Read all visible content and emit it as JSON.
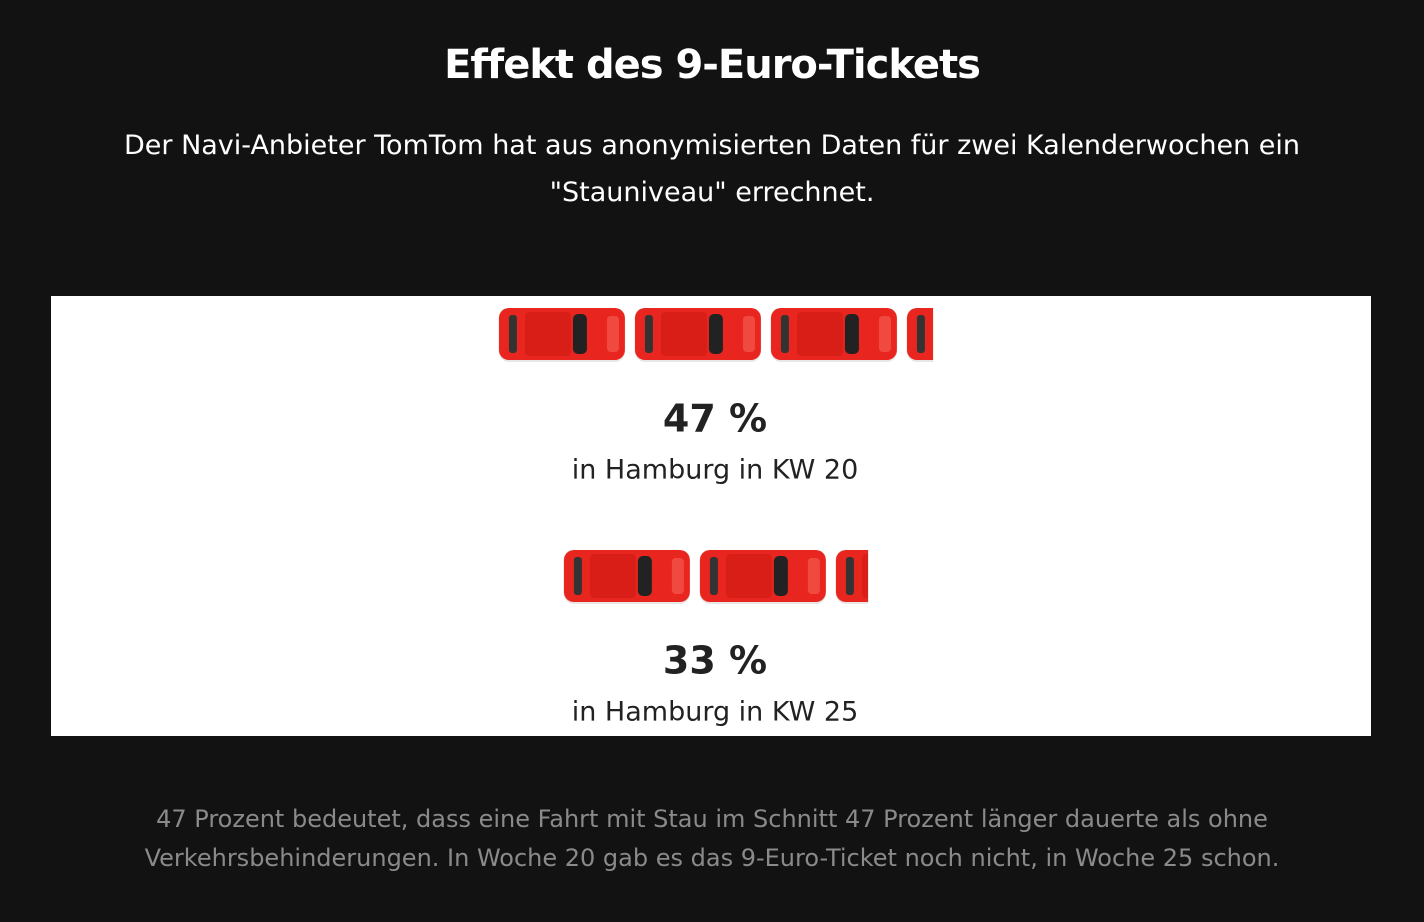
{
  "chart_data": {
    "type": "pictogram",
    "title": "Effekt des 9-Euro-Tickets",
    "subtitle": "Der Navi-Anbieter TomTom hat aus anonymisierten Daten für zwei Kalenderwochen ein \"Stauniveau\" errechnet.",
    "categories": [
      "in Hamburg in KW 20",
      "in Hamburg in KW 25"
    ],
    "values": [
      47,
      33
    ],
    "value_labels": [
      "47 %",
      "33 %"
    ],
    "color": "#e8261f",
    "note": "47 Prozent bedeutet, dass eine Fahrt mit Stau im Schnitt 47 Prozent länger dauerte als ohne Verkehrsbehinderungen. In Woche 20 gab es das 9-Euro-Ticket noch nicht, in Woche 25 schon."
  }
}
